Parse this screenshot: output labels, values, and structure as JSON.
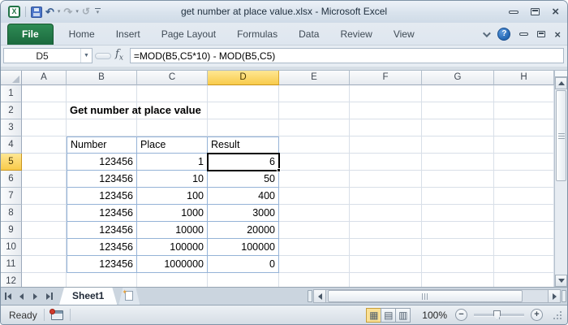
{
  "window": {
    "title": "get number at place value.xlsx - Microsoft Excel"
  },
  "qat": {
    "icons": [
      "excel-logo",
      "save",
      "undo",
      "redo",
      "repeat",
      "customize-quick-access-toolbar"
    ],
    "glyphs": {
      "excel_logo": "X",
      "undo": "↶",
      "redo": "↷",
      "repeat": "↺",
      "dropdown": "▾"
    }
  },
  "ribbon": {
    "tabs": [
      "File",
      "Home",
      "Insert",
      "Page Layout",
      "Formulas",
      "Data",
      "Review",
      "View"
    ],
    "active_tab": "File",
    "right_icons": [
      "minimize-ribbon-chevron",
      "help",
      "minimize-window",
      "restore-window",
      "close-window"
    ],
    "help_glyph": "?"
  },
  "formula_bar": {
    "cell_reference": "D5",
    "fx_label": "fx",
    "formula": "=MOD(B5,C5*10) - MOD(B5,C5)"
  },
  "spreadsheet": {
    "column_headers": [
      "A",
      "B",
      "C",
      "D",
      "E",
      "F",
      "G",
      "H"
    ],
    "row_numbers": [
      "1",
      "2",
      "3",
      "4",
      "5",
      "6",
      "7",
      "8",
      "9",
      "10",
      "11",
      "12"
    ],
    "selected_cell": "D5",
    "selected_column": "D",
    "selected_row": "5",
    "title_cell": {
      "ref": "B2",
      "text": "Get number at place value"
    },
    "table": {
      "range": "B4:D11",
      "columns": [
        "B",
        "C",
        "D"
      ],
      "header_row": 4,
      "headers": [
        "Number",
        "Place",
        "Result"
      ],
      "rows": [
        [
          "123456",
          "1",
          "6"
        ],
        [
          "123456",
          "10",
          "50"
        ],
        [
          "123456",
          "100",
          "400"
        ],
        [
          "123456",
          "1000",
          "3000"
        ],
        [
          "123456",
          "10000",
          "20000"
        ],
        [
          "123456",
          "100000",
          "100000"
        ],
        [
          "123456",
          "1000000",
          "0"
        ]
      ]
    }
  },
  "sheet_tabs": {
    "active_tab": "Sheet1",
    "icons": [
      "first-sheet",
      "previous-sheet",
      "next-sheet",
      "last-sheet",
      "insert-worksheet"
    ]
  },
  "status_bar": {
    "mode": "Ready",
    "zoom_level": "100%",
    "view_buttons": [
      "normal-view",
      "page-layout-view",
      "page-break-preview"
    ],
    "view_glyphs": [
      "▦",
      "▤",
      "▥"
    ]
  },
  "colors": {
    "file_tab_green": "#1E7145",
    "header_highlight": "#F8CB4B",
    "table_border": "#95B3D7",
    "selection_border": "#000000",
    "gridline": "#D8DFE8"
  }
}
